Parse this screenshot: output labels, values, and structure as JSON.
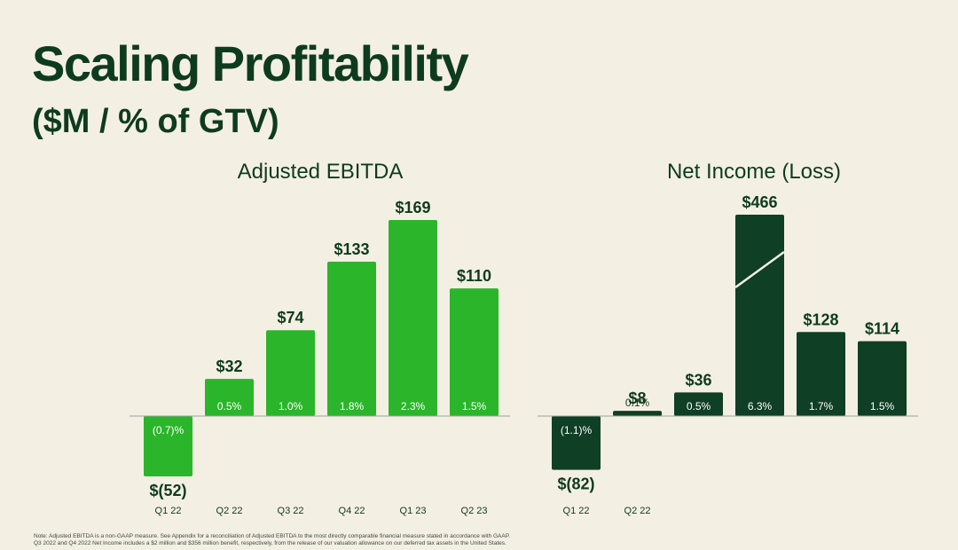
{
  "page": {
    "title": "Scaling Profitability",
    "subtitle": "($M / % of GTV)",
    "notes": [
      "Note: Adjusted EBITDA is a non-GAAP measure. See Appendix for a reconciliation of Adjusted EBITDA to the most directly comparable financial measure stated in accordance with GAAP.",
      "Q3 2022 and Q4 2022 Net Income includes a $2 million and $356 million benefit, respectively, from the release of our valuation allowance on our deferred tax assets in the United States."
    ]
  },
  "colors": {
    "ebitda_bar": "#2bb52b",
    "net_income_bar": "#0f3f24",
    "dark_text": "#0e3b1f",
    "background": "#f4efe3"
  },
  "chart_data": [
    {
      "type": "bar",
      "title": "Adjusted EBITDA",
      "categories": [
        "Q1 22",
        "Q2 22",
        "Q3 22",
        "Q4 22",
        "Q1 23",
        "Q2 23"
      ],
      "values": [
        -52,
        32,
        74,
        133,
        169,
        110
      ],
      "value_labels": [
        "$(52)",
        "$32",
        "$74",
        "$133",
        "$169",
        "$110"
      ],
      "pct_labels": [
        "(0.7)%",
        "0.5%",
        "1.0%",
        "1.8%",
        "2.3%",
        "1.5%"
      ],
      "ylim": [
        -52,
        169
      ]
    },
    {
      "type": "bar",
      "title": "Net Income (Loss)",
      "categories": [
        "Q1 22",
        "Q2 22",
        "",
        "",
        "",
        ""
      ],
      "values": [
        -82,
        8,
        36,
        466,
        128,
        114
      ],
      "value_labels": [
        "$(82)",
        "$8",
        "$36",
        "$466",
        "$128",
        "$114"
      ],
      "pct_labels": [
        "(1.1)%",
        "0.1%",
        "0.5%",
        "6.3%",
        "1.7%",
        "1.5%"
      ],
      "axis_break": true,
      "ylim": [
        -82,
        466
      ]
    }
  ]
}
